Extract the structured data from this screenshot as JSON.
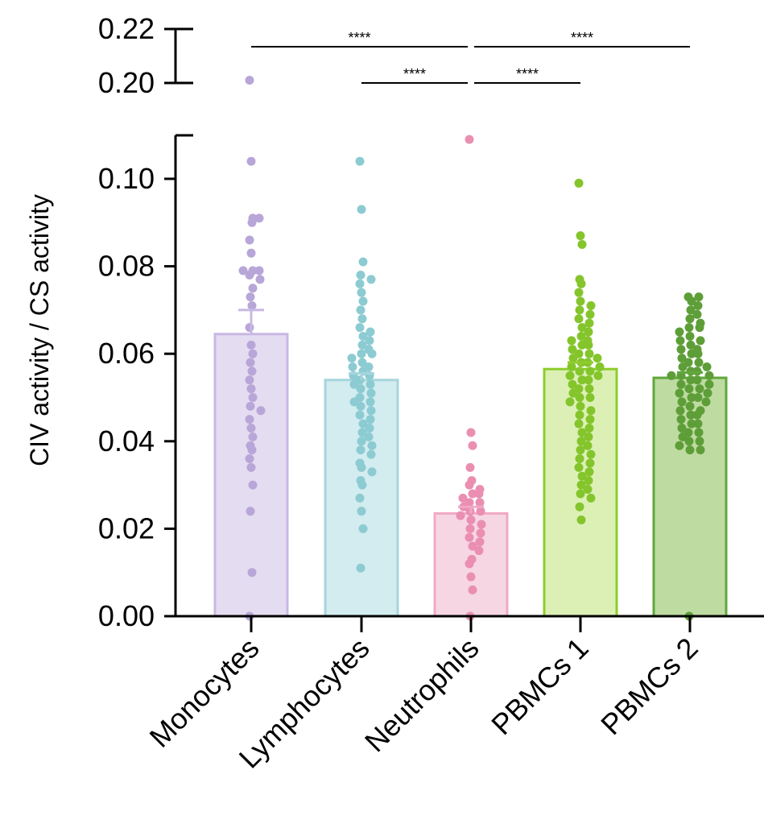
{
  "chart_data": {
    "type": "bar",
    "title": "",
    "xlabel": "",
    "ylabel": "CIV activity / CS activity",
    "categories": [
      "Monocytes",
      "Lymphocytes",
      "Neutrophils",
      "PBMCs 1",
      "PBMCs 2"
    ],
    "means": [
      0.0645,
      0.054,
      0.0235,
      0.0565,
      0.0545
    ],
    "sem": [
      0.0055,
      0.0015,
      0.0015,
      0.0015,
      0.0012
    ],
    "y_axis": {
      "broken": true,
      "lower_range": [
        0,
        0.11
      ],
      "upper_range": [
        0.2,
        0.22
      ],
      "lower_ticks": [
        "0.00",
        "0.02",
        "0.04",
        "0.06",
        "0.08",
        "0.10"
      ],
      "upper_ticks": [
        "0.20",
        "0.22"
      ]
    },
    "grid": false,
    "colors": {
      "fill": [
        "#e4dcf1",
        "#d3ecef",
        "#f6d6e2",
        "#dcf0b6",
        "#bedba2"
      ],
      "stroke": [
        "#c8b8e3",
        "#a6d5dc",
        "#f0a9c4",
        "#8fcc2c",
        "#5fa83b"
      ],
      "point": [
        "#b8a6d8",
        "#8ccbd2",
        "#ea8fb1",
        "#84c52c",
        "#5e9e38"
      ]
    },
    "points": [
      [
        0.201,
        0.104,
        0.091,
        0.091,
        0.09,
        0.086,
        0.083,
        0.079,
        0.079,
        0.079,
        0.078,
        0.077,
        0.075,
        0.073,
        0.071,
        0.066,
        0.062,
        0.06,
        0.058,
        0.056,
        0.054,
        0.052,
        0.05,
        0.048,
        0.047,
        0.045,
        0.043,
        0.041,
        0.039,
        0.038,
        0.036,
        0.034,
        0.03,
        0.024,
        0.01,
        0.0
      ],
      [
        0.104,
        0.093,
        0.081,
        0.078,
        0.077,
        0.076,
        0.074,
        0.072,
        0.07,
        0.068,
        0.066,
        0.065,
        0.064,
        0.063,
        0.062,
        0.061,
        0.06,
        0.06,
        0.059,
        0.058,
        0.057,
        0.057,
        0.056,
        0.055,
        0.055,
        0.054,
        0.053,
        0.053,
        0.052,
        0.051,
        0.05,
        0.049,
        0.049,
        0.048,
        0.047,
        0.046,
        0.045,
        0.044,
        0.043,
        0.042,
        0.041,
        0.04,
        0.039,
        0.038,
        0.037,
        0.035,
        0.034,
        0.033,
        0.031,
        0.03,
        0.027,
        0.024,
        0.02,
        0.011
      ],
      [
        0.109,
        0.042,
        0.039,
        0.034,
        0.031,
        0.03,
        0.029,
        0.028,
        0.028,
        0.027,
        0.026,
        0.026,
        0.025,
        0.024,
        0.024,
        0.023,
        0.022,
        0.021,
        0.02,
        0.019,
        0.018,
        0.017,
        0.016,
        0.015,
        0.013,
        0.012,
        0.009,
        0.006,
        0.0
      ],
      [
        0.099,
        0.087,
        0.085,
        0.077,
        0.076,
        0.074,
        0.072,
        0.071,
        0.07,
        0.069,
        0.068,
        0.067,
        0.066,
        0.065,
        0.064,
        0.063,
        0.063,
        0.062,
        0.062,
        0.061,
        0.06,
        0.06,
        0.059,
        0.059,
        0.058,
        0.058,
        0.057,
        0.057,
        0.056,
        0.056,
        0.055,
        0.055,
        0.054,
        0.054,
        0.053,
        0.052,
        0.052,
        0.051,
        0.05,
        0.05,
        0.049,
        0.048,
        0.047,
        0.046,
        0.045,
        0.044,
        0.043,
        0.042,
        0.041,
        0.04,
        0.039,
        0.038,
        0.037,
        0.036,
        0.035,
        0.034,
        0.033,
        0.032,
        0.031,
        0.03,
        0.029,
        0.028,
        0.027,
        0.025,
        0.022
      ],
      [
        0.073,
        0.073,
        0.072,
        0.071,
        0.07,
        0.069,
        0.068,
        0.067,
        0.066,
        0.066,
        0.065,
        0.064,
        0.063,
        0.063,
        0.062,
        0.061,
        0.061,
        0.06,
        0.06,
        0.059,
        0.058,
        0.058,
        0.057,
        0.057,
        0.056,
        0.056,
        0.055,
        0.055,
        0.055,
        0.054,
        0.054,
        0.053,
        0.053,
        0.052,
        0.052,
        0.051,
        0.051,
        0.05,
        0.05,
        0.049,
        0.049,
        0.048,
        0.047,
        0.047,
        0.046,
        0.046,
        0.045,
        0.044,
        0.044,
        0.043,
        0.042,
        0.042,
        0.041,
        0.04,
        0.04,
        0.039,
        0.038,
        0.038,
        0.0
      ]
    ],
    "significance": [
      {
        "from": 0,
        "to": 2,
        "label": "****"
      },
      {
        "from": 1,
        "to": 2,
        "label": "****"
      },
      {
        "from": 2,
        "to": 3,
        "label": "****"
      },
      {
        "from": 2,
        "to": 4,
        "label": "****"
      }
    ]
  }
}
